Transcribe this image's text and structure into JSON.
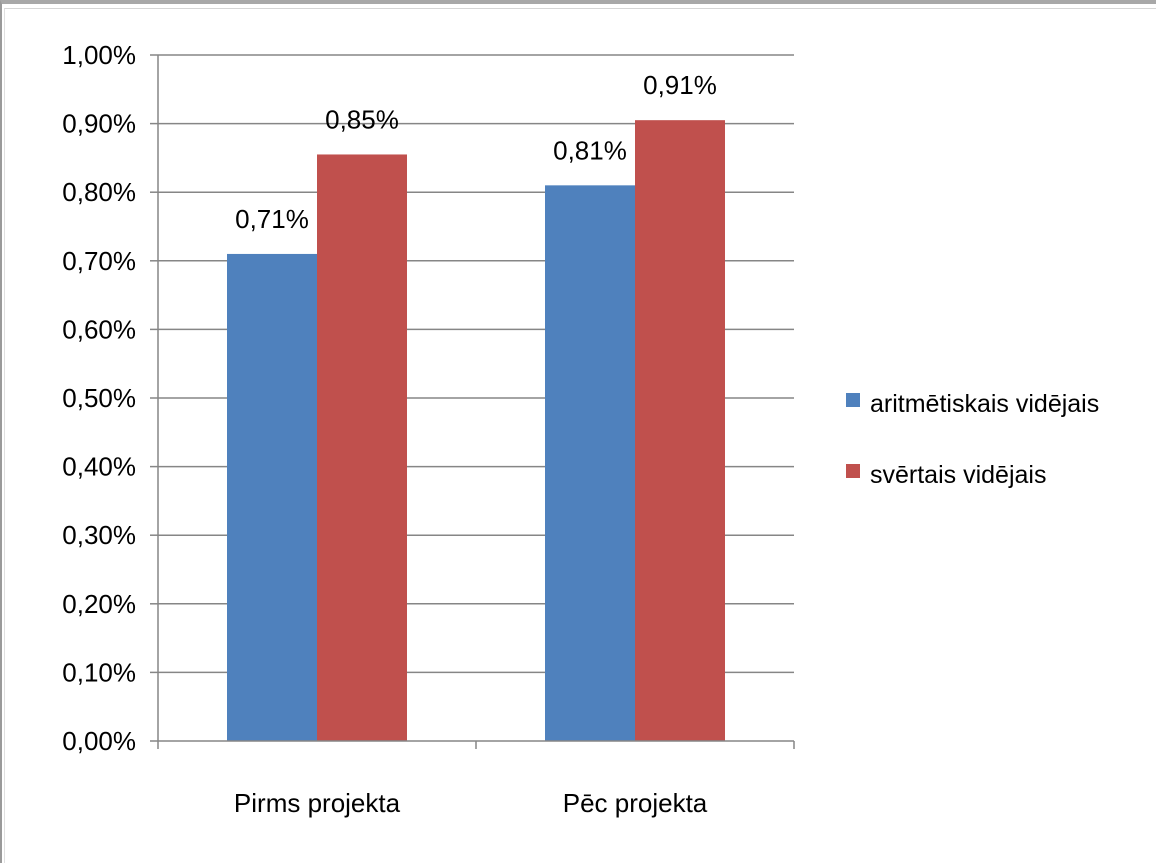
{
  "chart_data": {
    "type": "bar",
    "categories": [
      "Pirms projekta",
      "Pēc projekta"
    ],
    "series": [
      {
        "name": "aritmētiskais vidējais",
        "values": [
          0.71,
          0.81
        ],
        "labels": [
          "0,71%",
          "0,81%"
        ],
        "color": "#4f81bd"
      },
      {
        "name": "svērtais vidējais",
        "values": [
          0.855,
          0.905
        ],
        "labels": [
          "0,85%",
          "0,91%"
        ],
        "color": "#c0504d"
      }
    ],
    "ylim": [
      0,
      1.0
    ],
    "yticks": [
      "0,00%",
      "0,10%",
      "0,20%",
      "0,30%",
      "0,40%",
      "0,50%",
      "0,60%",
      "0,70%",
      "0,80%",
      "0,90%",
      "1,00%"
    ],
    "grid": true,
    "legend": "right"
  }
}
